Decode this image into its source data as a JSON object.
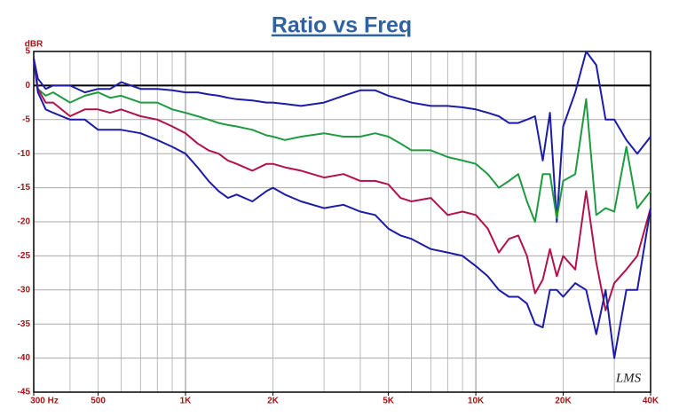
{
  "chart_data": {
    "type": "line",
    "title": "Ratio vs Freq",
    "y_label": "dBR",
    "annotation": "LMS",
    "x": [
      300,
      310,
      330,
      350,
      400,
      450,
      500,
      550,
      600,
      700,
      800,
      900,
      1000,
      1100,
      1200,
      1300,
      1400,
      1500,
      1700,
      1900,
      2000,
      2200,
      2500,
      3000,
      3500,
      4000,
      4500,
      5000,
      5500,
      6000,
      7000,
      8000,
      9000,
      10000,
      11000,
      12000,
      13000,
      14000,
      15000,
      16000,
      17000,
      18000,
      19000,
      20000,
      22000,
      24000,
      26000,
      28000,
      30000,
      33000,
      36000,
      40000
    ],
    "series": [
      {
        "color": "#1c1ca6",
        "values": [
          4,
          1,
          -0.5,
          0,
          0,
          -1,
          -0.5,
          -0.5,
          0.5,
          -0.5,
          -0.5,
          -0.7,
          -1,
          -1,
          -1.3,
          -1.5,
          -1.8,
          -2,
          -2.2,
          -2.5,
          -2.5,
          -2.7,
          -3,
          -2.5,
          -1.5,
          -0.7,
          -0.7,
          -1.5,
          -2,
          -2.5,
          -3,
          -3,
          -3.2,
          -3.5,
          -4,
          -4.5,
          -5.5,
          -5.5,
          -5,
          -4.5,
          -11,
          -4,
          -20,
          -6,
          -1,
          5,
          3,
          -5,
          -5,
          -8,
          -10,
          -7.5
        ]
      },
      {
        "color": "#1e9a40",
        "values": [
          4,
          -0.5,
          -1.5,
          -1,
          -2.5,
          -1.5,
          -1,
          -1.8,
          -1.5,
          -2.5,
          -2.5,
          -3.5,
          -4,
          -4.5,
          -5,
          -5.5,
          -5.8,
          -6,
          -6.5,
          -7.3,
          -7.5,
          -8,
          -7.5,
          -7,
          -7.5,
          -7.5,
          -7,
          -7.5,
          -8.5,
          -9.5,
          -9.5,
          -10.5,
          -11,
          -11.5,
          -13,
          -15,
          -14,
          -13,
          -17,
          -20,
          -13,
          -13,
          -19.5,
          -14,
          -13,
          -2,
          -19,
          -18,
          -18.5,
          -9,
          -18,
          -15.5
        ]
      },
      {
        "color": "#b0124c",
        "values": [
          4,
          -0.5,
          -2.5,
          -2.5,
          -4.5,
          -3.5,
          -3.5,
          -4,
          -3.5,
          -4.5,
          -5,
          -6,
          -7,
          -8.5,
          -9.5,
          -10,
          -11,
          -11.5,
          -12.5,
          -11.5,
          -11.5,
          -12,
          -12.5,
          -13.5,
          -13,
          -14,
          -14,
          -14.5,
          -16.5,
          -17,
          -16.5,
          -19,
          -18.5,
          -19,
          -21,
          -24.5,
          -22.5,
          -22,
          -25,
          -30.5,
          -28.5,
          -24,
          -28,
          -25,
          -27,
          -15.5,
          -26,
          -33,
          -29,
          -27,
          -25,
          -18
        ]
      },
      {
        "color": "#1c1ca6",
        "values": [
          4,
          -1,
          -3.5,
          -4,
          -5,
          -5,
          -6.5,
          -6.5,
          -6.5,
          -7,
          -8,
          -9,
          -10,
          -12,
          -14,
          -15.5,
          -16.5,
          -16,
          -17,
          -15.5,
          -15,
          -16,
          -17,
          -18,
          -17.5,
          -18.5,
          -19,
          -21,
          -22,
          -22.5,
          -24,
          -24.5,
          -25,
          -26.5,
          -28,
          -30,
          -31,
          -31,
          -32,
          -35,
          -35.5,
          -30,
          -30,
          -31,
          -29,
          -30,
          -36.5,
          -30,
          -40,
          -30,
          -30,
          -18
        ]
      }
    ],
    "xlim": [
      300,
      40000
    ],
    "log_x": true,
    "xticks": [
      {
        "value": 300,
        "label": "300 Hz"
      },
      500,
      {
        "value": 1000,
        "label": "1K"
      },
      {
        "value": 2000,
        "label": "2K"
      },
      {
        "value": 5000,
        "label": "5K"
      },
      {
        "value": 10000,
        "label": "10K"
      },
      {
        "value": 20000,
        "label": "20K"
      },
      {
        "value": 40000,
        "label": "40K"
      }
    ],
    "ylim": [
      -45,
      5
    ],
    "yticks": [
      -45,
      -40,
      -35,
      -30,
      -25,
      -20,
      -15,
      -10,
      -5,
      0,
      5
    ],
    "grid": true
  }
}
